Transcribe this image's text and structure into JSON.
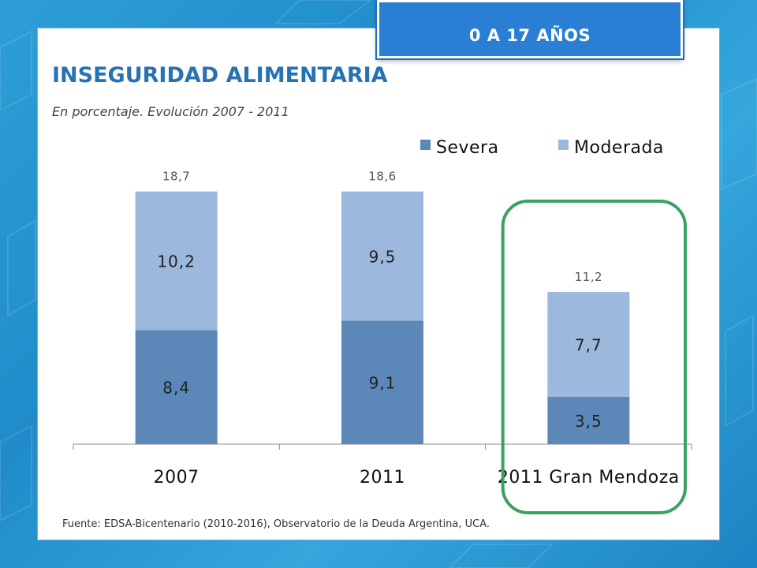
{
  "header": {
    "badge": "0 A 17 AÑOS",
    "title": "INSEGURIDAD ALIMENTARIA",
    "subtitle": "En porcentaje. Evolución 2007 - 2011"
  },
  "footer": {
    "source": "Fuente: EDSA-Bicentenario (2010-2016), Observatorio de la Deuda Argentina, UCA."
  },
  "colors": {
    "severa": "#5b88b9",
    "moderada": "#9cb8dd",
    "highlight": "#3aa162",
    "accent": "#2672b3"
  },
  "chart_data": {
    "type": "bar",
    "stacked": true,
    "categories": [
      "2007",
      "2011",
      "2011 Gran Mendoza"
    ],
    "series": [
      {
        "name": "Severa",
        "values": [
          8.4,
          9.1,
          3.5
        ],
        "labels": [
          "8,4",
          "9,1",
          "3,5"
        ]
      },
      {
        "name": "Moderada",
        "values": [
          10.2,
          9.5,
          7.7
        ],
        "labels": [
          "10,2",
          "9,5",
          "7,7"
        ]
      }
    ],
    "totals": [
      18.7,
      18.6,
      11.2
    ],
    "total_labels": [
      "18,7",
      "18,6",
      "11,2"
    ],
    "ylim": [
      0,
      18.7
    ],
    "grid": false,
    "legend": "top-right",
    "highlight_category": "2011 Gran Mendoza"
  }
}
